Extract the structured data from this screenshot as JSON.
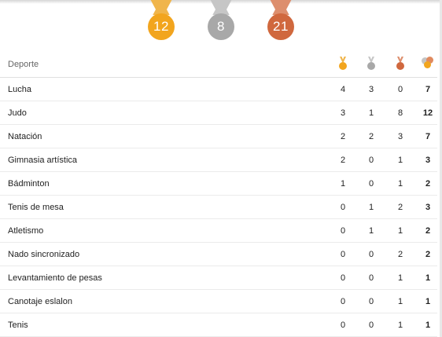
{
  "summary": {
    "gold": "12",
    "silver": "8",
    "bronze": "21"
  },
  "table": {
    "header": {
      "sport": "Deporte"
    },
    "rows": [
      {
        "sport": "Lucha",
        "gold": "4",
        "silver": "3",
        "bronze": "0",
        "total": "7"
      },
      {
        "sport": "Judo",
        "gold": "3",
        "silver": "1",
        "bronze": "8",
        "total": "12"
      },
      {
        "sport": "Natación",
        "gold": "2",
        "silver": "2",
        "bronze": "3",
        "total": "7"
      },
      {
        "sport": "Gimnasia artística",
        "gold": "2",
        "silver": "0",
        "bronze": "1",
        "total": "3"
      },
      {
        "sport": "Bádminton",
        "gold": "1",
        "silver": "0",
        "bronze": "1",
        "total": "2"
      },
      {
        "sport": "Tenis de mesa",
        "gold": "0",
        "silver": "1",
        "bronze": "2",
        "total": "3"
      },
      {
        "sport": "Atletismo",
        "gold": "0",
        "silver": "1",
        "bronze": "1",
        "total": "2"
      },
      {
        "sport": "Nado sincronizado",
        "gold": "0",
        "silver": "0",
        "bronze": "2",
        "total": "2"
      },
      {
        "sport": "Levantamiento de pesas",
        "gold": "0",
        "silver": "0",
        "bronze": "1",
        "total": "1"
      },
      {
        "sport": "Canotaje eslalon",
        "gold": "0",
        "silver": "0",
        "bronze": "1",
        "total": "1"
      },
      {
        "sport": "Tenis",
        "gold": "0",
        "silver": "0",
        "bronze": "1",
        "total": "1"
      }
    ]
  },
  "icons": {
    "gold": "gold-medal-icon",
    "silver": "silver-medal-icon",
    "bronze": "bronze-medal-icon",
    "total": "total-medals-icon"
  },
  "colors": {
    "gold": "#f2a51e",
    "silver": "#a8a8a8",
    "bronze": "#d0683e"
  }
}
